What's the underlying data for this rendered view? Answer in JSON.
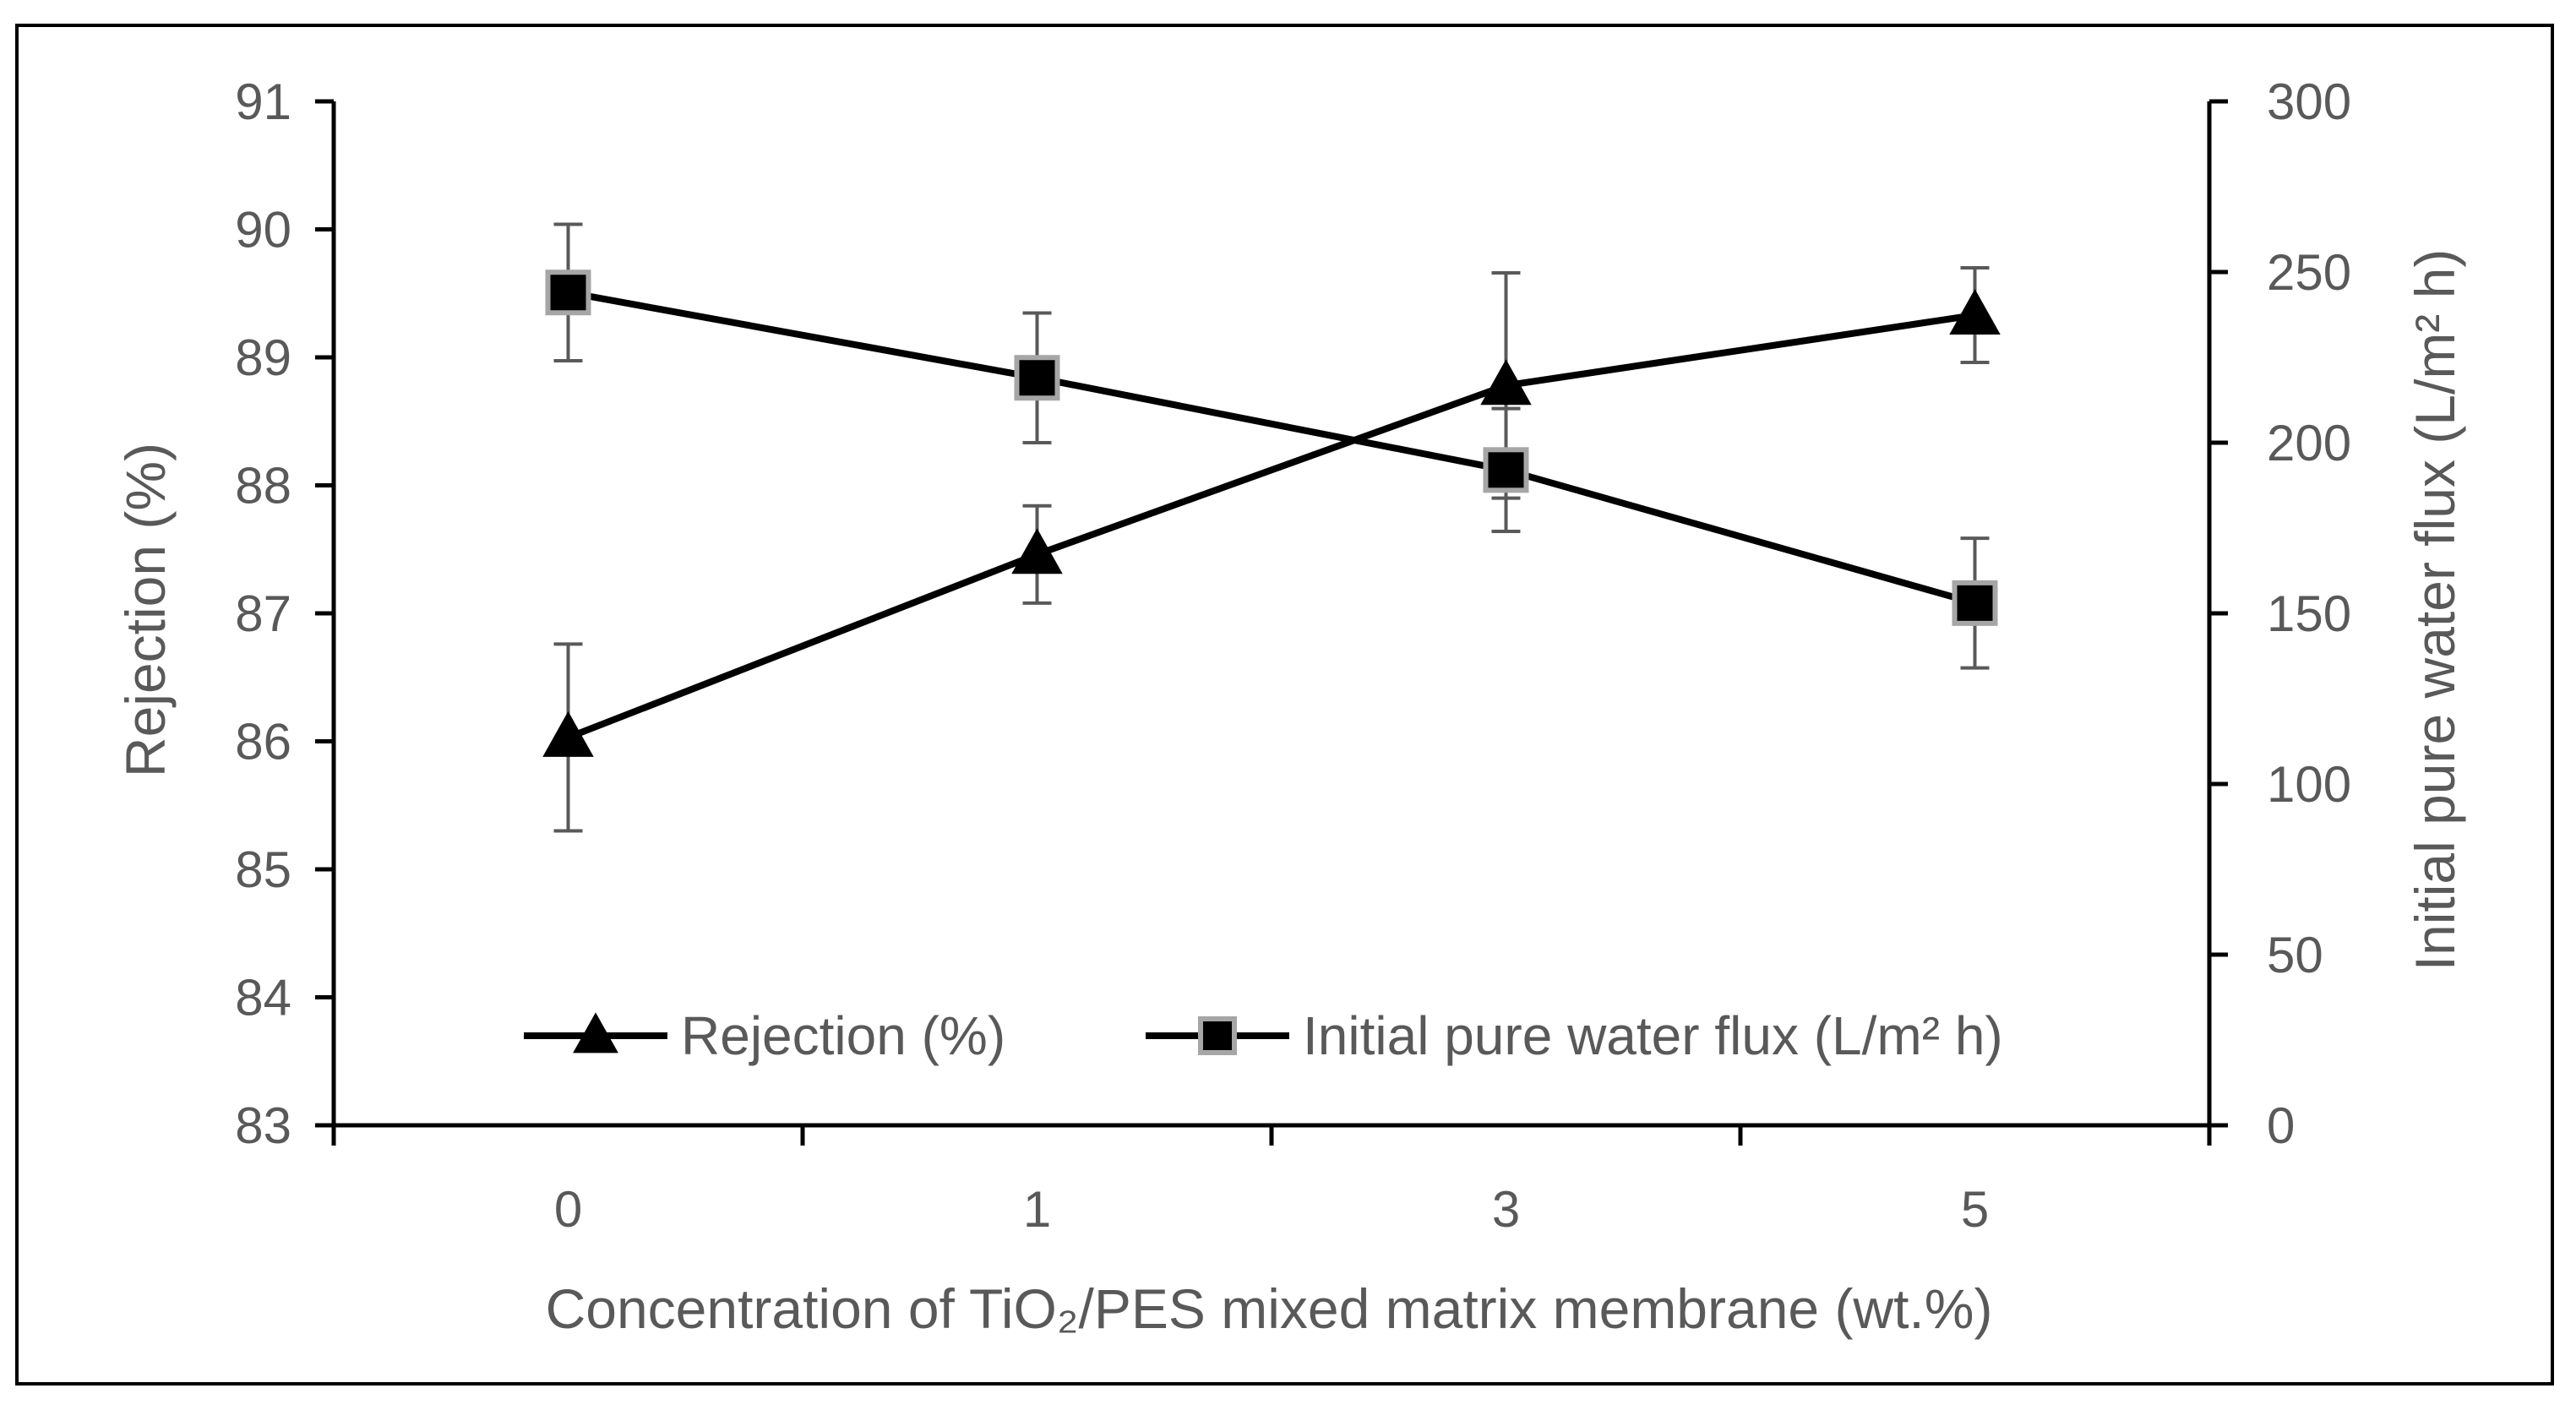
{
  "chart_data": {
    "type": "line",
    "title": "",
    "xlabel": "Concentration of TiO₂/PES mixed matrix membrane (wt.%)",
    "ylabel_left": "Rejection (%)",
    "ylabel_right": "Initial pure water flux (L/m² h)",
    "categories": [
      "0",
      "1",
      "3",
      "5"
    ],
    "ylim_left": [
      83,
      91
    ],
    "yticks_left": [
      83,
      84,
      85,
      86,
      87,
      88,
      89,
      90,
      91
    ],
    "ylim_right": [
      0,
      300
    ],
    "yticks_right": [
      0,
      50,
      100,
      150,
      200,
      250,
      300
    ],
    "series": [
      {
        "name": "Rejection (%)",
        "axis": "left",
        "marker": "triangle",
        "values": [
          86.03,
          87.46,
          88.78,
          89.33
        ],
        "error": [
          0.73,
          0.38,
          0.88,
          0.37
        ]
      },
      {
        "name": "Initial pure water flux (L/m² h)",
        "axis": "right",
        "marker": "square",
        "values": [
          244,
          219,
          192,
          153
        ],
        "error": [
          20,
          19,
          18,
          19
        ]
      }
    ],
    "legend": {
      "position": "bottom-inside"
    },
    "grid": false,
    "colors": {
      "line": "#000000",
      "marker_fill": "#000000",
      "square_edge": "#a6a6a6",
      "error_bar": "#595959",
      "text": "#595959"
    }
  }
}
